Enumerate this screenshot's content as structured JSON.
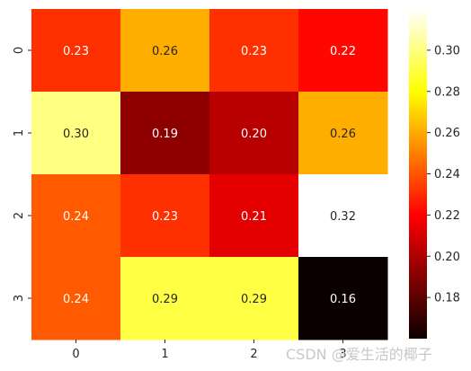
{
  "chart_data": {
    "type": "heatmap",
    "colormap": "hot",
    "row_labels": [
      "0",
      "1",
      "2",
      "3"
    ],
    "col_labels": [
      "0",
      "1",
      "2",
      "3"
    ],
    "values": [
      [
        0.23,
        0.26,
        0.23,
        0.22
      ],
      [
        0.3,
        0.19,
        0.2,
        0.26
      ],
      [
        0.24,
        0.23,
        0.21,
        0.32
      ],
      [
        0.24,
        0.29,
        0.29,
        0.16
      ]
    ],
    "value_labels": [
      [
        "0.23",
        "0.26",
        "0.23",
        "0.22"
      ],
      [
        "0.30",
        "0.19",
        "0.20",
        "0.26"
      ],
      [
        "0.24",
        "0.23",
        "0.21",
        "0.32"
      ],
      [
        "0.24",
        "0.29",
        "0.29",
        "0.16"
      ]
    ],
    "color_range": [
      0.16,
      0.32
    ],
    "colorbar": {
      "ticks": [
        0.18,
        0.2,
        0.22,
        0.24,
        0.26,
        0.28,
        0.3
      ],
      "tick_labels": [
        "0.18",
        "0.20",
        "0.22",
        "0.24",
        "0.26",
        "0.28",
        "0.30"
      ],
      "position": "right"
    },
    "title": "",
    "xlabel": "",
    "ylabel": ""
  },
  "watermark": "CSDN @爱生活的椰子"
}
